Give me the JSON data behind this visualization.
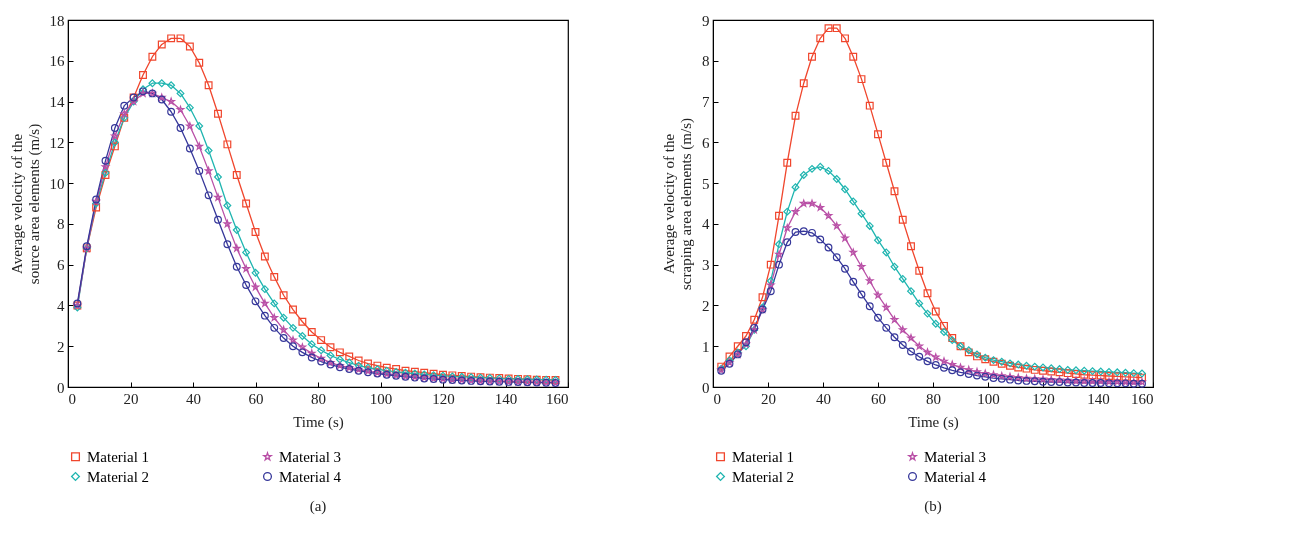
{
  "chart_data": [
    {
      "type": "line",
      "xlabel": "Time (s)",
      "ylabel": "Average velocity of the source area elements (m/s)",
      "annotations": [
        "(a)"
      ],
      "legend": "bottom",
      "xlim": [
        0,
        160
      ],
      "xticks": [
        0,
        20,
        40,
        60,
        80,
        100,
        120,
        140,
        160
      ],
      "ylim": [
        0,
        18
      ],
      "yticks": [
        0,
        2,
        4,
        6,
        8,
        10,
        12,
        14,
        16,
        18
      ],
      "x": [
        3,
        6,
        9,
        12,
        15,
        18,
        21,
        24,
        27,
        30,
        33,
        36,
        39,
        42,
        45,
        48,
        51,
        54,
        57,
        60,
        63,
        66,
        69,
        72,
        75,
        78,
        81,
        84,
        87,
        90,
        93,
        96,
        99,
        102,
        105,
        108,
        111,
        114,
        117,
        120,
        123,
        126,
        129,
        132,
        135,
        138,
        141,
        144,
        147,
        150,
        153,
        156
      ],
      "series": [
        {
          "name": "Material 1",
          "color": "#f0462d",
          "marker": "square",
          "values": [
            4.0,
            6.8,
            8.8,
            10.4,
            11.8,
            13.2,
            14.2,
            15.3,
            16.2,
            16.8,
            17.1,
            17.1,
            16.7,
            15.9,
            14.8,
            13.4,
            11.9,
            10.4,
            9.0,
            7.6,
            6.4,
            5.4,
            4.5,
            3.8,
            3.2,
            2.7,
            2.3,
            1.95,
            1.7,
            1.5,
            1.3,
            1.15,
            1.05,
            0.95,
            0.88,
            0.8,
            0.75,
            0.7,
            0.65,
            0.6,
            0.57,
            0.54,
            0.51,
            0.48,
            0.46,
            0.44,
            0.42,
            0.4,
            0.38,
            0.36,
            0.35,
            0.34
          ]
        },
        {
          "name": "Material 2",
          "color": "#1fb5b0",
          "marker": "diamond",
          "values": [
            3.9,
            6.8,
            9.0,
            10.5,
            12.0,
            13.2,
            14.0,
            14.6,
            14.9,
            14.9,
            14.8,
            14.4,
            13.7,
            12.8,
            11.6,
            10.3,
            8.9,
            7.7,
            6.6,
            5.6,
            4.8,
            4.1,
            3.4,
            2.9,
            2.5,
            2.1,
            1.8,
            1.55,
            1.35,
            1.2,
            1.05,
            0.95,
            0.87,
            0.8,
            0.74,
            0.7,
            0.66,
            0.62,
            0.58,
            0.55,
            0.52,
            0.5,
            0.48,
            0.46,
            0.44,
            0.42,
            0.4,
            0.39,
            0.38,
            0.37,
            0.36,
            0.35
          ]
        },
        {
          "name": "Material 3",
          "color": "#b94fa6",
          "marker": "star",
          "values": [
            4.0,
            6.8,
            9.1,
            10.8,
            12.3,
            13.4,
            14.0,
            14.4,
            14.4,
            14.2,
            14.0,
            13.6,
            12.8,
            11.8,
            10.6,
            9.3,
            8.0,
            6.8,
            5.8,
            4.9,
            4.1,
            3.4,
            2.8,
            2.3,
            1.95,
            1.65,
            1.4,
            1.2,
            1.05,
            0.95,
            0.86,
            0.78,
            0.7,
            0.64,
            0.58,
            0.53,
            0.49,
            0.45,
            0.42,
            0.39,
            0.36,
            0.34,
            0.32,
            0.3,
            0.28,
            0.27,
            0.26,
            0.25,
            0.24,
            0.23,
            0.22,
            0.21
          ]
        },
        {
          "name": "Material 4",
          "color": "#36379a",
          "marker": "circle",
          "values": [
            4.1,
            6.9,
            9.2,
            11.1,
            12.7,
            13.8,
            14.2,
            14.5,
            14.4,
            14.1,
            13.5,
            12.7,
            11.7,
            10.6,
            9.4,
            8.2,
            7.0,
            5.9,
            5.0,
            4.2,
            3.5,
            2.9,
            2.4,
            2.0,
            1.7,
            1.45,
            1.25,
            1.1,
            0.97,
            0.88,
            0.8,
            0.72,
            0.66,
            0.6,
            0.55,
            0.5,
            0.46,
            0.42,
            0.39,
            0.36,
            0.34,
            0.32,
            0.3,
            0.28,
            0.27,
            0.26,
            0.25,
            0.24,
            0.23,
            0.22,
            0.21,
            0.2
          ]
        }
      ]
    },
    {
      "type": "line",
      "xlabel": "Time (s)",
      "ylabel": "Average velocity of the scraping area elements (m/s)",
      "annotations": [
        "(b)"
      ],
      "legend": "bottom",
      "xlim": [
        0,
        160
      ],
      "xticks": [
        0,
        20,
        40,
        60,
        80,
        100,
        120,
        140,
        160
      ],
      "ylim": [
        0,
        9
      ],
      "yticks": [
        0,
        1,
        2,
        3,
        4,
        5,
        6,
        7,
        8,
        9
      ],
      "x": [
        3,
        6,
        9,
        12,
        15,
        18,
        21,
        24,
        27,
        30,
        33,
        36,
        39,
        42,
        45,
        48,
        51,
        54,
        57,
        60,
        63,
        66,
        69,
        72,
        75,
        78,
        81,
        84,
        87,
        90,
        93,
        96,
        99,
        102,
        105,
        108,
        111,
        114,
        117,
        120,
        123,
        126,
        129,
        132,
        135,
        138,
        141,
        144,
        147,
        150,
        153,
        156
      ],
      "series": [
        {
          "name": "Material 1",
          "color": "#f0462d",
          "marker": "square",
          "values": [
            0.5,
            0.75,
            1.0,
            1.25,
            1.65,
            2.2,
            3.0,
            4.2,
            5.5,
            6.65,
            7.45,
            8.1,
            8.55,
            8.8,
            8.8,
            8.55,
            8.1,
            7.55,
            6.9,
            6.2,
            5.5,
            4.8,
            4.1,
            3.45,
            2.85,
            2.3,
            1.85,
            1.5,
            1.2,
            1.0,
            0.85,
            0.75,
            0.68,
            0.62,
            0.57,
            0.52,
            0.48,
            0.45,
            0.42,
            0.4,
            0.38,
            0.36,
            0.34,
            0.32,
            0.3,
            0.29,
            0.28,
            0.27,
            0.26,
            0.25,
            0.24,
            0.23
          ]
        },
        {
          "name": "Material 2",
          "color": "#1fb5b0",
          "marker": "diamond",
          "values": [
            0.45,
            0.65,
            0.85,
            1.0,
            1.4,
            1.95,
            2.6,
            3.5,
            4.3,
            4.9,
            5.2,
            5.35,
            5.4,
            5.3,
            5.1,
            4.85,
            4.55,
            4.25,
            3.95,
            3.6,
            3.3,
            2.95,
            2.65,
            2.35,
            2.05,
            1.8,
            1.55,
            1.35,
            1.15,
            1.0,
            0.9,
            0.8,
            0.72,
            0.66,
            0.62,
            0.58,
            0.55,
            0.52,
            0.5,
            0.48,
            0.46,
            0.44,
            0.42,
            0.41,
            0.4,
            0.39,
            0.38,
            0.37,
            0.36,
            0.35,
            0.34,
            0.33
          ]
        },
        {
          "name": "Material 3",
          "color": "#b94fa6",
          "marker": "star",
          "values": [
            0.42,
            0.6,
            0.8,
            1.05,
            1.4,
            1.9,
            2.5,
            3.25,
            3.9,
            4.3,
            4.5,
            4.5,
            4.4,
            4.2,
            3.95,
            3.65,
            3.3,
            2.95,
            2.6,
            2.25,
            1.95,
            1.65,
            1.4,
            1.2,
            1.0,
            0.85,
            0.73,
            0.63,
            0.55,
            0.48,
            0.42,
            0.37,
            0.33,
            0.3,
            0.27,
            0.25,
            0.23,
            0.21,
            0.2,
            0.19,
            0.18,
            0.17,
            0.16,
            0.15,
            0.15,
            0.14,
            0.14,
            0.13,
            0.13,
            0.12,
            0.12,
            0.12
          ]
        },
        {
          "name": "Material 4",
          "color": "#36379a",
          "marker": "circle",
          "values": [
            0.4,
            0.57,
            0.8,
            1.1,
            1.45,
            1.9,
            2.35,
            3.0,
            3.55,
            3.8,
            3.82,
            3.78,
            3.62,
            3.42,
            3.18,
            2.9,
            2.58,
            2.27,
            1.98,
            1.7,
            1.45,
            1.22,
            1.03,
            0.87,
            0.74,
            0.63,
            0.54,
            0.47,
            0.41,
            0.36,
            0.32,
            0.28,
            0.25,
            0.22,
            0.2,
            0.18,
            0.16,
            0.15,
            0.14,
            0.13,
            0.12,
            0.12,
            0.11,
            0.11,
            0.1,
            0.1,
            0.1,
            0.09,
            0.09,
            0.09,
            0.08,
            0.08
          ]
        }
      ]
    }
  ]
}
